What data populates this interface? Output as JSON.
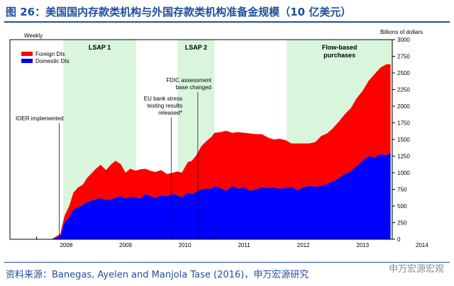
{
  "title": "图 26：美国国内存款类机构与外国存款类机构准备金规模（10 亿美元）",
  "source": "资料来源：Banegas, Ayelen and Manjola Tase (2016)，申万宏源研究",
  "watermark": "申万宏源宏观",
  "colors": {
    "foreign": "#ff0000",
    "domestic": "#0000ff",
    "shade": "#d9f5dc",
    "title": "#1f4e9c"
  },
  "chart_data": {
    "type": "area",
    "frequency_label": "Weekly",
    "units_label": "Billions of dollars",
    "x_ticks": [
      "2008",
      "2009",
      "2010",
      "2011",
      "2012",
      "2013",
      "2014"
    ],
    "y_ticks": [
      0,
      250,
      500,
      750,
      1000,
      1250,
      1500,
      1750,
      2000,
      2250,
      2500,
      2750,
      3000
    ],
    "xlim": [
      2007.55,
      2014.0
    ],
    "ylim": [
      0,
      3000
    ],
    "legend": {
      "position": "top-left",
      "entries": [
        "Foreign DIs",
        "Domestic DIs"
      ]
    },
    "shaded_periods": [
      {
        "label": "LSAP 1",
        "start": 2008.45,
        "end": 2009.68
      },
      {
        "label": "LSAP 2",
        "start": 2010.38,
        "end": 2011.0
      },
      {
        "label": "Flow-based purchases",
        "start": 2012.22,
        "end": 2014.0
      }
    ],
    "annotations": [
      {
        "text": "IOER implemented",
        "x": 2008.4,
        "y": 1750
      },
      {
        "text": "EU bank stress testing results released*",
        "x": 2010.55,
        "y": 2050
      },
      {
        "text": "FDIC assessment base changed",
        "x": 2010.75,
        "y": 2300
      }
    ],
    "x": [
      2008.0,
      2008.25,
      2008.4,
      2008.47,
      2008.55,
      2008.62,
      2008.7,
      2008.78,
      2008.85,
      2009.0,
      2009.08,
      2009.17,
      2009.25,
      2009.33,
      2009.42,
      2009.5,
      2009.58,
      2009.67,
      2009.75,
      2009.83,
      2009.92,
      2010.0,
      2010.1,
      2010.2,
      2010.3,
      2010.38,
      2010.45,
      2010.55,
      2010.62,
      2010.7,
      2010.78,
      2010.87,
      2010.95,
      2011.0,
      2011.1,
      2011.2,
      2011.3,
      2011.4,
      2011.5,
      2011.6,
      2011.7,
      2011.8,
      2011.9,
      2012.0,
      2012.1,
      2012.2,
      2012.3,
      2012.4,
      2012.5,
      2012.6,
      2012.7,
      2012.8,
      2012.9,
      2013.0,
      2013.1,
      2013.2,
      2013.3,
      2013.4,
      2013.5,
      2013.6,
      2013.7,
      2013.8,
      2013.9,
      2013.97
    ],
    "series": [
      {
        "name": "Domestic DIs",
        "values": [
          0,
          0,
          50,
          250,
          330,
          450,
          480,
          520,
          560,
          600,
          620,
          590,
          600,
          620,
          650,
          610,
          640,
          630,
          610,
          680,
          650,
          620,
          660,
          650,
          680,
          660,
          630,
          700,
          680,
          720,
          750,
          760,
          760,
          800,
          770,
          730,
          800,
          760,
          780,
          730,
          750,
          780,
          770,
          780,
          760,
          770,
          790,
          740,
          780,
          800,
          790,
          800,
          830,
          870,
          920,
          980,
          1020,
          1100,
          1180,
          1250,
          1230,
          1280,
          1260,
          1300
        ]
      },
      {
        "name": "Foreign DIs",
        "values": [
          0,
          0,
          30,
          100,
          170,
          250,
          300,
          300,
          360,
          460,
          500,
          450,
          520,
          560,
          480,
          390,
          420,
          400,
          440,
          380,
          380,
          390,
          380,
          330,
          320,
          360,
          370,
          460,
          500,
          550,
          650,
          720,
          780,
          800,
          840,
          900,
          800,
          850,
          820,
          860,
          830,
          800,
          760,
          720,
          750,
          720,
          650,
          700,
          660,
          640,
          670,
          750,
          760,
          800,
          850,
          900,
          950,
          1020,
          1050,
          1130,
          1250,
          1300,
          1370,
          1330
        ]
      }
    ]
  }
}
